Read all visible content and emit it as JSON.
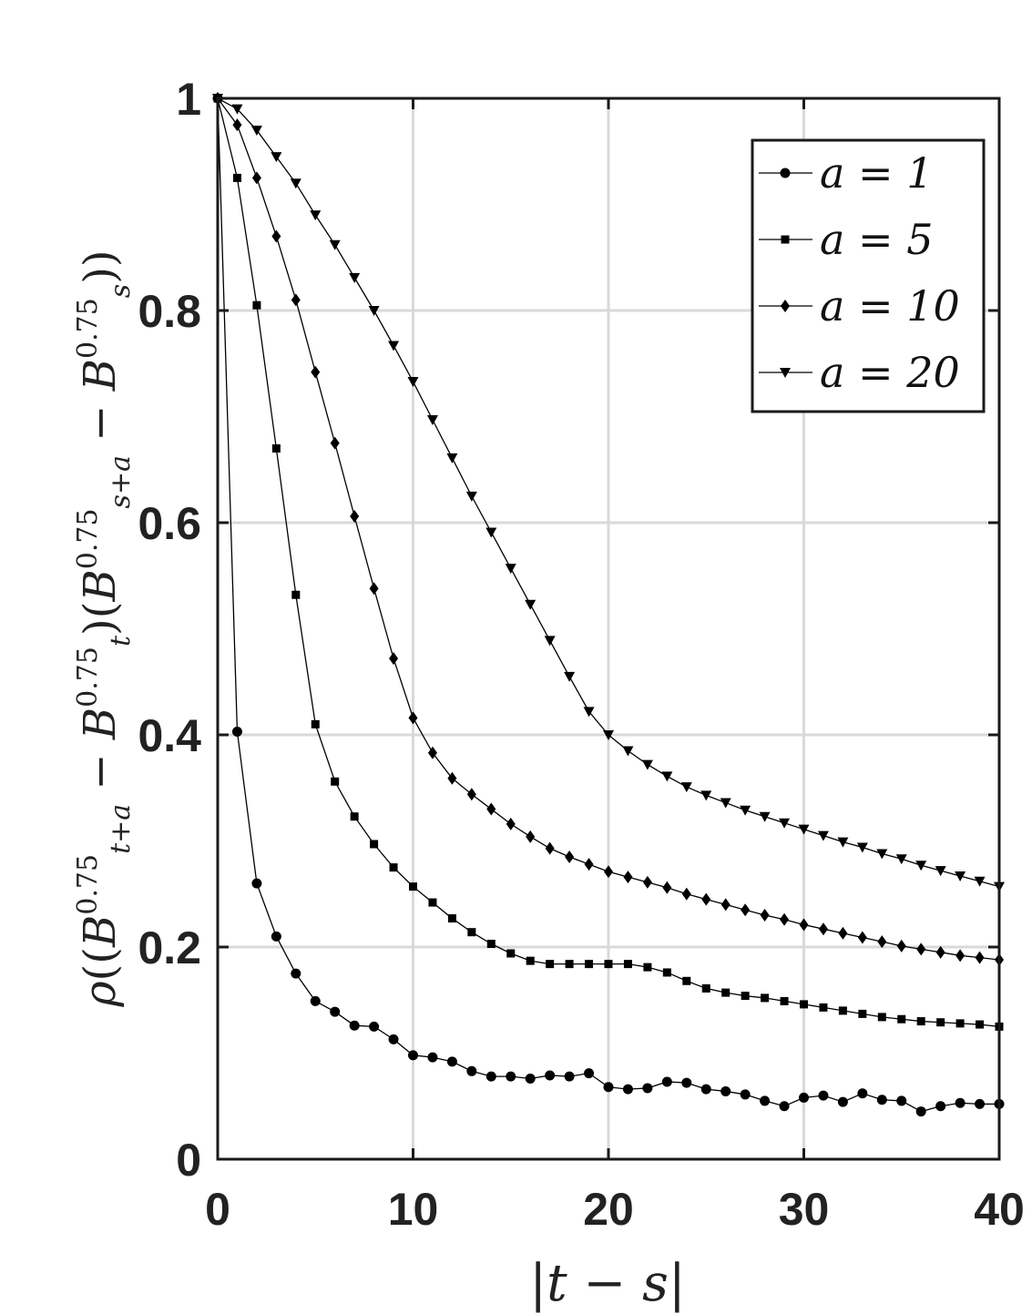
{
  "chart_data": {
    "type": "line",
    "xlabel": "|t − s|",
    "ylabel": "ρ((B^{0.75}_{t+a} − B^{0.75}_t)(B^{0.75}_{s+a} − B^{0.75}_s))",
    "xlim": [
      0,
      40
    ],
    "ylim": [
      0,
      1
    ],
    "x_ticks": [
      "0",
      "10",
      "20",
      "30",
      "40"
    ],
    "y_ticks": [
      "0",
      "0.2",
      "0.4",
      "0.6",
      "0.8",
      "1"
    ],
    "grid": true,
    "legend_position": "top-right",
    "x": [
      0,
      1,
      2,
      3,
      4,
      5,
      6,
      7,
      8,
      9,
      10,
      11,
      12,
      13,
      14,
      15,
      16,
      17,
      18,
      19,
      20,
      21,
      22,
      23,
      24,
      25,
      26,
      27,
      28,
      29,
      30,
      31,
      32,
      33,
      34,
      35,
      36,
      37,
      38,
      39,
      40
    ],
    "series": [
      {
        "name": "a = 1",
        "marker": "circle",
        "values": [
          1.0,
          0.403,
          0.26,
          0.21,
          0.175,
          0.149,
          0.139,
          0.126,
          0.125,
          0.113,
          0.098,
          0.096,
          0.092,
          0.083,
          0.078,
          0.078,
          0.076,
          0.079,
          0.078,
          0.081,
          0.068,
          0.066,
          0.067,
          0.073,
          0.072,
          0.066,
          0.064,
          0.061,
          0.055,
          0.05,
          0.058,
          0.06,
          0.054,
          0.062,
          0.056,
          0.055,
          0.045,
          0.05,
          0.053,
          0.052,
          0.052
        ]
      },
      {
        "name": "a = 5",
        "marker": "square",
        "values": [
          1.0,
          0.925,
          0.805,
          0.67,
          0.532,
          0.41,
          0.356,
          0.323,
          0.297,
          0.275,
          0.257,
          0.242,
          0.227,
          0.214,
          0.203,
          0.194,
          0.187,
          0.184,
          0.184,
          0.184,
          0.184,
          0.184,
          0.181,
          0.176,
          0.168,
          0.161,
          0.157,
          0.154,
          0.152,
          0.149,
          0.146,
          0.143,
          0.14,
          0.137,
          0.134,
          0.132,
          0.13,
          0.129,
          0.128,
          0.127,
          0.125
        ]
      },
      {
        "name": "a = 10",
        "marker": "diamond",
        "values": [
          1.0,
          0.975,
          0.925,
          0.87,
          0.81,
          0.742,
          0.675,
          0.606,
          0.538,
          0.472,
          0.416,
          0.383,
          0.359,
          0.344,
          0.33,
          0.316,
          0.304,
          0.293,
          0.285,
          0.278,
          0.271,
          0.266,
          0.261,
          0.256,
          0.25,
          0.245,
          0.24,
          0.235,
          0.23,
          0.226,
          0.221,
          0.217,
          0.213,
          0.209,
          0.205,
          0.201,
          0.198,
          0.195,
          0.192,
          0.19,
          0.188
        ]
      },
      {
        "name": "a = 20",
        "marker": "triangle-down",
        "values": [
          1.0,
          0.99,
          0.97,
          0.945,
          0.92,
          0.89,
          0.862,
          0.831,
          0.8,
          0.767,
          0.733,
          0.697,
          0.661,
          0.625,
          0.591,
          0.557,
          0.523,
          0.489,
          0.455,
          0.422,
          0.4,
          0.385,
          0.372,
          0.361,
          0.351,
          0.343,
          0.336,
          0.329,
          0.323,
          0.317,
          0.311,
          0.305,
          0.299,
          0.294,
          0.288,
          0.283,
          0.277,
          0.272,
          0.267,
          0.262,
          0.257
        ]
      }
    ]
  }
}
